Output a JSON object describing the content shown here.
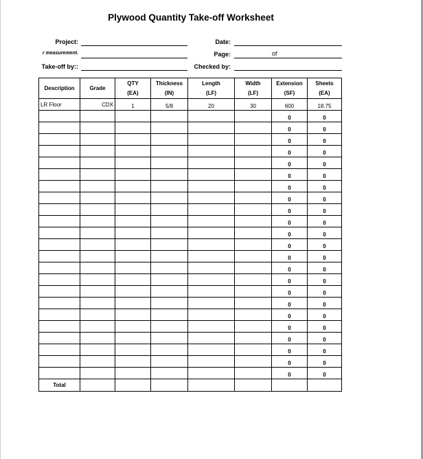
{
  "title": "Plywood Quantity Take-off Worksheet",
  "fields": {
    "project_label": "Project:",
    "measurement_label": "r measurement.",
    "takeoff_label": "Take-off by::",
    "date_label": "Date:",
    "page_label": "Page:",
    "page_of": "of",
    "checked_label": "Checked by:"
  },
  "table": {
    "headers": [
      [
        "Description",
        ""
      ],
      [
        "Grade",
        ""
      ],
      [
        "QTY",
        "(EA)"
      ],
      [
        "Thickness",
        "(IN)"
      ],
      [
        "Length",
        "(LF)"
      ],
      [
        "Width",
        "(LF)"
      ],
      [
        "Extension",
        "(SF)"
      ],
      [
        "Sheets",
        "(EA)"
      ]
    ],
    "rows": [
      [
        "LR Floor",
        "CDX",
        "1",
        "5/8",
        "20",
        "30",
        "600",
        "18.75"
      ],
      [
        "",
        "",
        "",
        "",
        "",
        "",
        "0",
        "0"
      ],
      [
        "",
        "",
        "",
        "",
        "",
        "",
        "0",
        "0"
      ],
      [
        "",
        "",
        "",
        "",
        "",
        "",
        "0",
        "0"
      ],
      [
        "",
        "",
        "",
        "",
        "",
        "",
        "0",
        "0"
      ],
      [
        "",
        "",
        "",
        "",
        "",
        "",
        "0",
        "0"
      ],
      [
        "",
        "",
        "",
        "",
        "",
        "",
        "0",
        "0"
      ],
      [
        "",
        "",
        "",
        "",
        "",
        "",
        "0",
        "0"
      ],
      [
        "",
        "",
        "",
        "",
        "",
        "",
        "0",
        "0"
      ],
      [
        "",
        "",
        "",
        "",
        "",
        "",
        "0",
        "0"
      ],
      [
        "",
        "",
        "",
        "",
        "",
        "",
        "0",
        "0"
      ],
      [
        "",
        "",
        "",
        "",
        "",
        "",
        "0",
        "0"
      ],
      [
        "",
        "",
        "",
        "",
        "",
        "",
        "0",
        "0"
      ],
      [
        "",
        "",
        "",
        "",
        "",
        "",
        "0",
        "0"
      ],
      [
        "",
        "",
        "",
        "",
        "",
        "",
        "0",
        "0"
      ],
      [
        "",
        "",
        "",
        "",
        "",
        "",
        "0",
        "0"
      ],
      [
        "",
        "",
        "",
        "",
        "",
        "",
        "0",
        "0"
      ],
      [
        "",
        "",
        "",
        "",
        "",
        "",
        "0",
        "0"
      ],
      [
        "",
        "",
        "",
        "",
        "",
        "",
        "0",
        "0"
      ],
      [
        "",
        "",
        "",
        "",
        "",
        "",
        "0",
        "0"
      ],
      [
        "",
        "",
        "",
        "",
        "",
        "",
        "0",
        "0"
      ],
      [
        "",
        "",
        "",
        "",
        "",
        "",
        "0",
        "0"
      ],
      [
        "",
        "",
        "",
        "",
        "",
        "",
        "0",
        "0"
      ],
      [
        "",
        "",
        "",
        "",
        "",
        "",
        "0",
        "0"
      ]
    ],
    "total_label": "Total"
  }
}
